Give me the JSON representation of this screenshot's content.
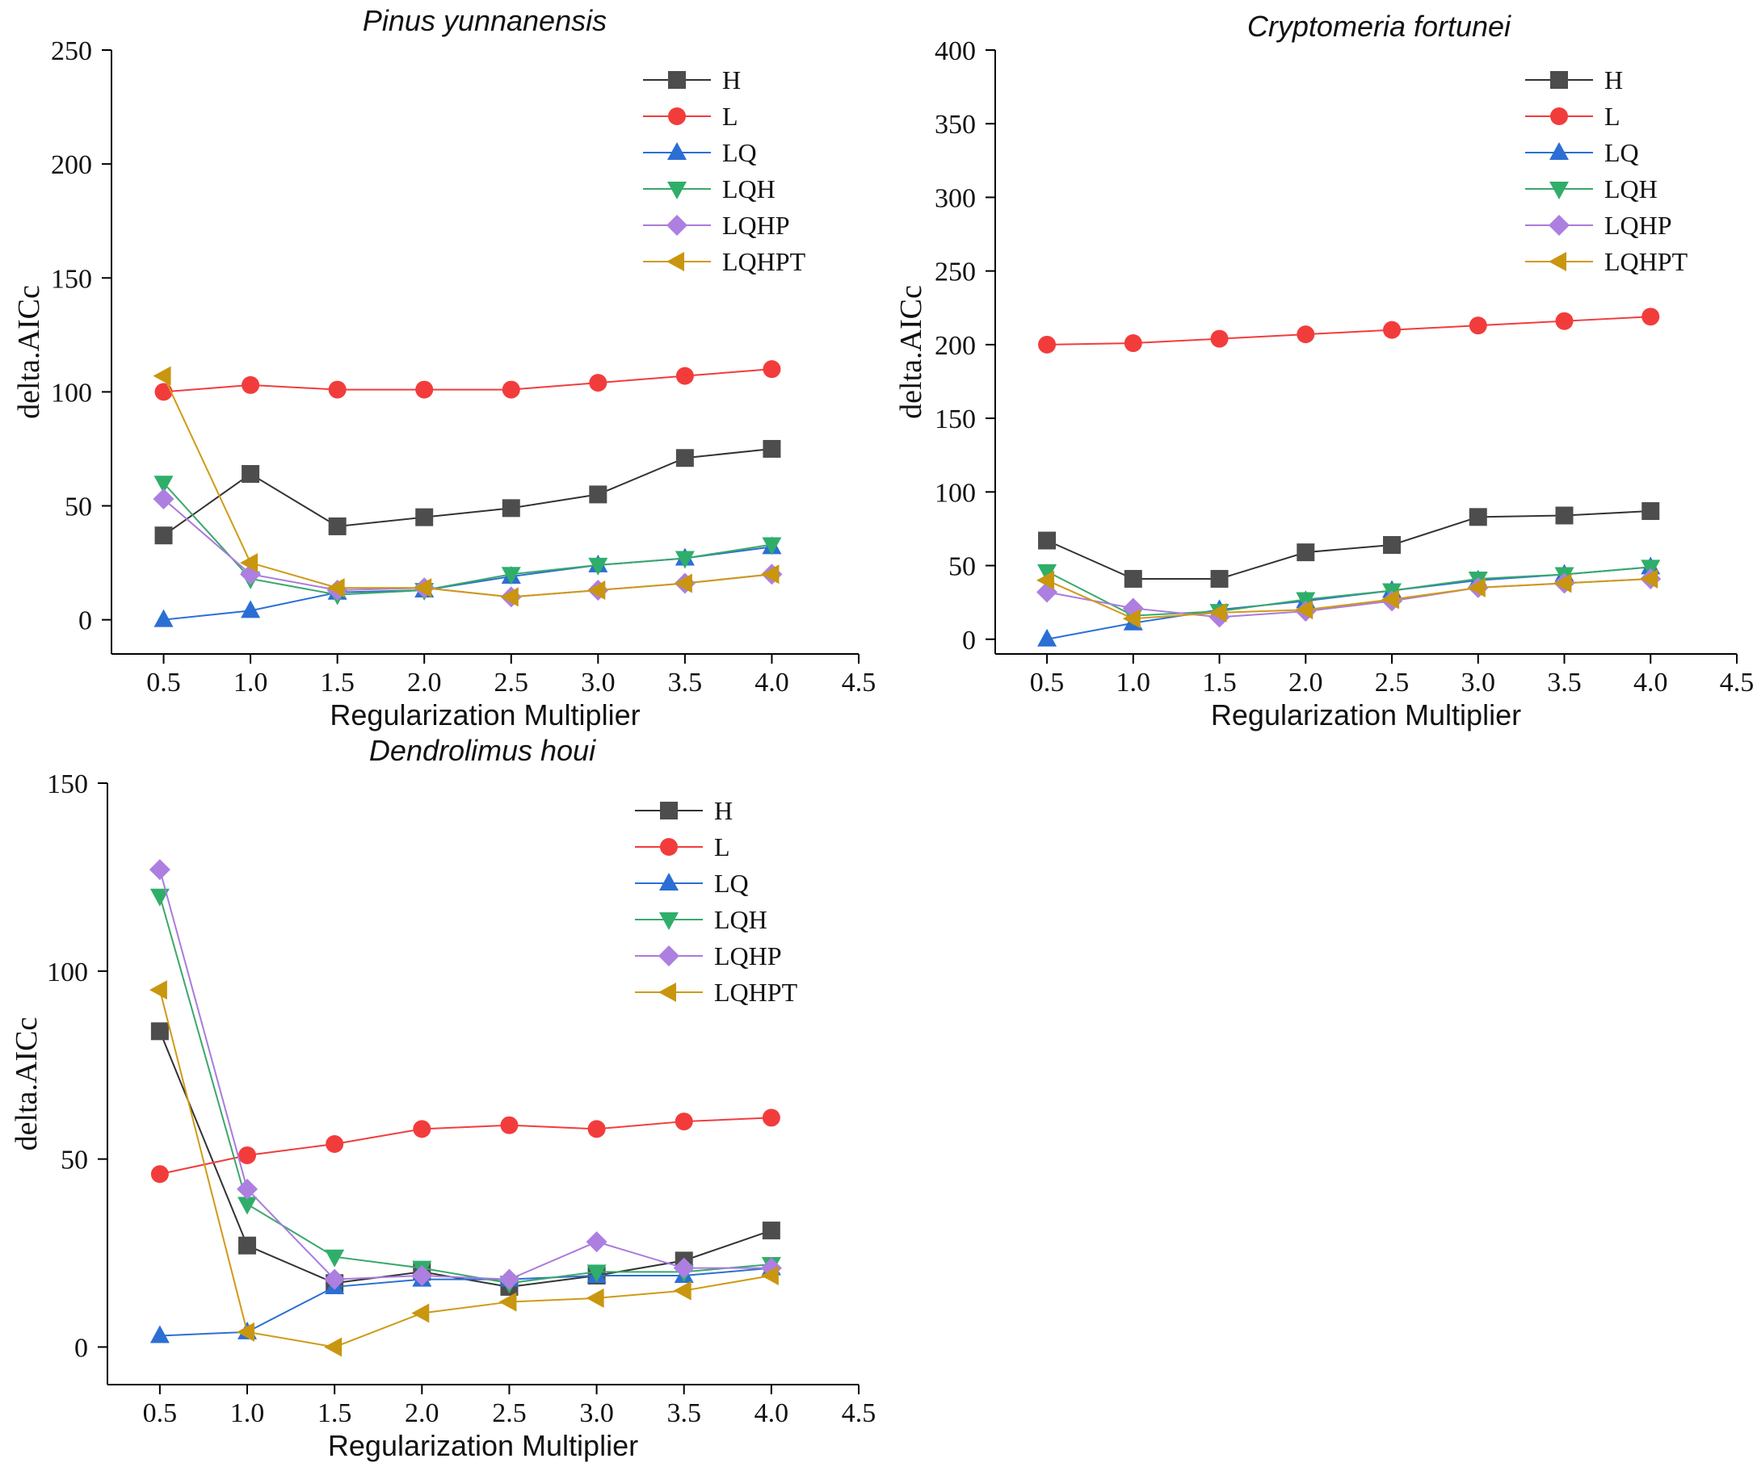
{
  "chart_data": [
    {
      "type": "line",
      "title": "Pinus yunnanensis",
      "xlabel": "Regularization Multiplier",
      "ylabel": "delta.AICc",
      "xlim": [
        0.2,
        4.5
      ],
      "ylim": [
        -15,
        250
      ],
      "xticks": [
        "0.5",
        "1.0",
        "1.5",
        "2.0",
        "2.5",
        "3.0",
        "3.5",
        "4.0",
        "4.5"
      ],
      "yticks": [
        "0",
        "50",
        "100",
        "150",
        "200",
        "250"
      ],
      "legend": "top-right",
      "x": [
        0.5,
        1.0,
        1.5,
        2.0,
        2.5,
        3.0,
        3.5,
        4.0
      ],
      "series": [
        {
          "name": "H",
          "values": [
            37,
            64,
            41,
            45,
            49,
            55,
            71,
            75
          ]
        },
        {
          "name": "L",
          "values": [
            100,
            103,
            101,
            101,
            101,
            104,
            107,
            110
          ]
        },
        {
          "name": "LQ",
          "values": [
            0,
            4,
            12,
            13,
            19,
            24,
            27,
            32
          ]
        },
        {
          "name": "LQH",
          "values": [
            60,
            18,
            11,
            13,
            20,
            24,
            27,
            33
          ]
        },
        {
          "name": "LQHP",
          "values": [
            53,
            20,
            13,
            14,
            10,
            13,
            16,
            20
          ]
        },
        {
          "name": "LQHPT",
          "values": [
            107,
            25,
            14,
            14,
            10,
            13,
            16,
            20
          ]
        }
      ]
    },
    {
      "type": "line",
      "title": "Cryptomeria fortunei",
      "xlabel": "Regularization Multiplier",
      "ylabel": "delta.AICc",
      "xlim": [
        0.2,
        4.5
      ],
      "ylim": [
        -10,
        400
      ],
      "xticks": [
        "0.5",
        "1.0",
        "1.5",
        "2.0",
        "2.5",
        "3.0",
        "3.5",
        "4.0",
        "4.5"
      ],
      "yticks": [
        "0",
        "50",
        "100",
        "150",
        "200",
        "250",
        "300",
        "350",
        "400"
      ],
      "legend": "top-right",
      "x": [
        0.5,
        1.0,
        1.5,
        2.0,
        2.5,
        3.0,
        3.5,
        4.0
      ],
      "series": [
        {
          "name": "H",
          "values": [
            67,
            41,
            41,
            59,
            64,
            83,
            84,
            87
          ]
        },
        {
          "name": "L",
          "values": [
            200,
            201,
            204,
            207,
            210,
            213,
            216,
            219
          ]
        },
        {
          "name": "LQ",
          "values": [
            0,
            11,
            20,
            26,
            33,
            40,
            44,
            49
          ]
        },
        {
          "name": "LQH",
          "values": [
            46,
            16,
            19,
            27,
            33,
            41,
            44,
            49
          ]
        },
        {
          "name": "LQHP",
          "values": [
            32,
            21,
            15,
            19,
            26,
            35,
            38,
            41
          ]
        },
        {
          "name": "LQHPT",
          "values": [
            40,
            14,
            18,
            20,
            27,
            35,
            38,
            41
          ]
        }
      ]
    },
    {
      "type": "line",
      "title": "Dendrolimus houi",
      "xlabel": "Regularization Multiplier",
      "ylabel": "delta.AICc",
      "xlim": [
        0.2,
        4.5
      ],
      "ylim": [
        -10,
        150
      ],
      "xticks": [
        "0.5",
        "1.0",
        "1.5",
        "2.0",
        "2.5",
        "3.0",
        "3.5",
        "4.0",
        "4.5"
      ],
      "yticks": [
        "0",
        "50",
        "100",
        "150"
      ],
      "legend": "top-right",
      "x": [
        0.5,
        1.0,
        1.5,
        2.0,
        2.5,
        3.0,
        3.5,
        4.0
      ],
      "series": [
        {
          "name": "H",
          "values": [
            84,
            27,
            17,
            20,
            16,
            19,
            23,
            31
          ]
        },
        {
          "name": "L",
          "values": [
            46,
            51,
            54,
            58,
            59,
            58,
            60,
            61
          ]
        },
        {
          "name": "LQ",
          "values": [
            3,
            4,
            16,
            18,
            18,
            19,
            19,
            21
          ]
        },
        {
          "name": "LQH",
          "values": [
            120,
            38,
            24,
            21,
            17,
            20,
            20,
            22
          ]
        },
        {
          "name": "LQHP",
          "values": [
            127,
            42,
            18,
            19,
            18,
            28,
            21,
            21
          ]
        },
        {
          "name": "LQHPT",
          "values": [
            95,
            4,
            0,
            9,
            12,
            13,
            15,
            19
          ]
        }
      ]
    }
  ],
  "series_styles": [
    {
      "name": "H",
      "line": "#333333",
      "fill": "#4d4d4d",
      "marker": "square"
    },
    {
      "name": "L",
      "line": "#f23c3c",
      "fill": "#f23c3c",
      "marker": "circle"
    },
    {
      "name": "LQ",
      "line": "#2b6fd4",
      "fill": "#2b6fd4",
      "marker": "triangle-up"
    },
    {
      "name": "LQH",
      "line": "#3aa86b",
      "fill": "#2fae6a",
      "marker": "triangle-down"
    },
    {
      "name": "LQHP",
      "line": "#a97bdc",
      "fill": "#ad7fe0",
      "marker": "diamond"
    },
    {
      "name": "LQHPT",
      "line": "#cf9a17",
      "fill": "#c9960f",
      "marker": "triangle-left"
    }
  ]
}
